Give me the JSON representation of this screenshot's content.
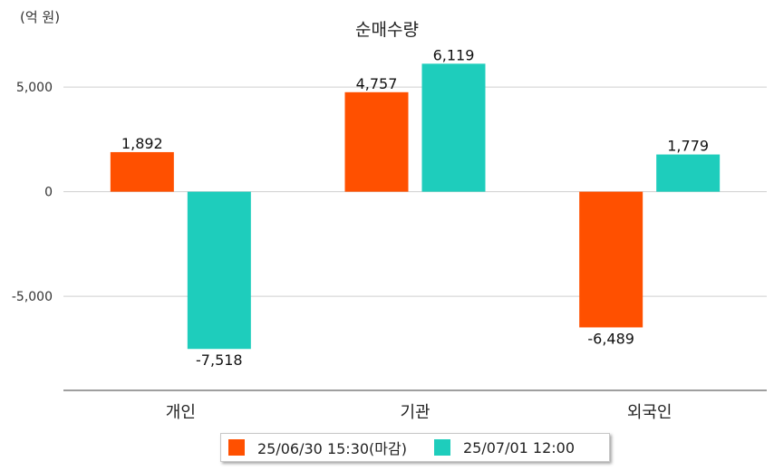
{
  "chart_data": {
    "type": "bar",
    "title": "순매수량",
    "unit_label": "(억 원)",
    "categories": [
      "개인",
      "기관",
      "외국인"
    ],
    "series": [
      {
        "name": "25/06/30 15:30(마감)",
        "color": "#ff5000",
        "values": [
          1892,
          4757,
          -6489
        ]
      },
      {
        "name": "25/07/01 12:00",
        "color": "#1ecdbc",
        "values": [
          -7518,
          6119,
          1779
        ]
      }
    ],
    "data_labels": [
      [
        "1,892",
        "4,757",
        "-6,489"
      ],
      [
        "-7,518",
        "6,119",
        "1,779"
      ]
    ],
    "yticks": [
      5000,
      0,
      -5000
    ],
    "ytick_labels": [
      "5,000",
      "0",
      "-5,000"
    ],
    "ylim": [
      -9500,
      7000
    ],
    "grid": true,
    "legend_position": "bottom"
  }
}
